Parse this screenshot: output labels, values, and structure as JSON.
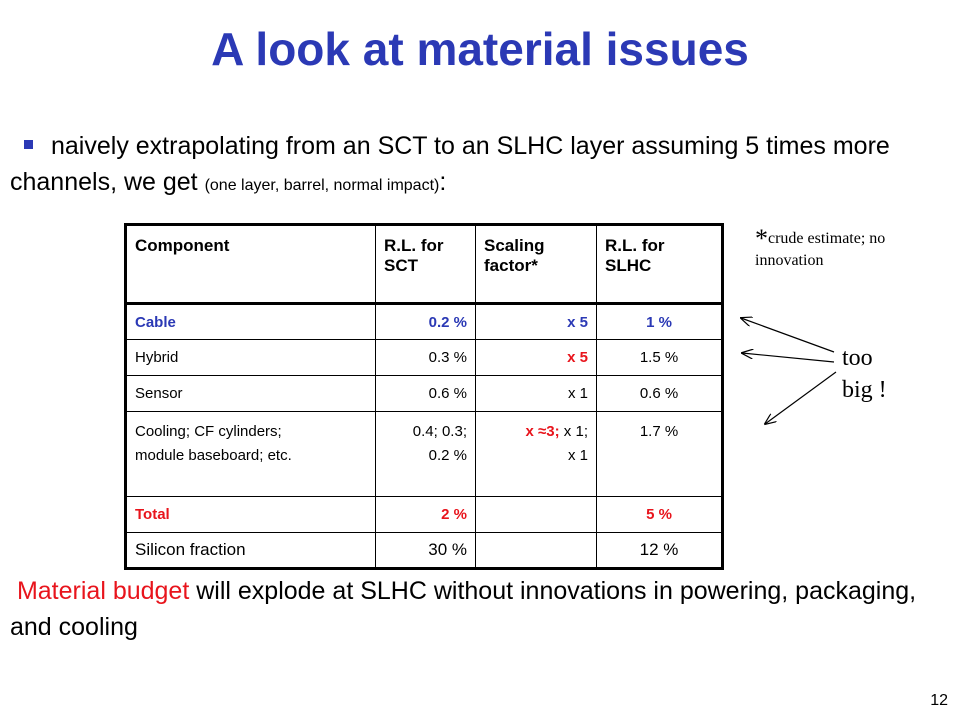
{
  "slide": {
    "title": "A look at material issues",
    "bullet_main": "naively extrapolating from an SCT to an SLHC layer assuming 5 times more channels, we get ",
    "bullet_paren": "(one layer, barrel, normal impact)",
    "bullet_colon": ":",
    "note_star": "*",
    "note_text": "crude estimate; no innovation",
    "callout_line1": "too",
    "callout_line2": "big !",
    "conclusion_highlight": "Material budget",
    "conclusion_rest": " will explode at SLHC without innovations in powering, packaging, and cooling",
    "page_number": "12"
  },
  "table": {
    "headers": [
      "Component",
      "R.L. for SCT",
      "Scaling factor*",
      "R.L. for SLHC"
    ],
    "rows": [
      {
        "component": "Cable",
        "rl_sct": "0.2 %",
        "scaling": "x 5",
        "rl_slhc": "1 %"
      },
      {
        "component": "Hybrid",
        "rl_sct": "0.3 %",
        "scaling": "x 5",
        "rl_slhc": "1.5 %"
      },
      {
        "component": "Sensor",
        "rl_sct": "0.6 %",
        "scaling": "x 1",
        "rl_slhc": "0.6 %"
      },
      {
        "component_line1": "Cooling; CF cylinders;",
        "component_line2": "module baseboard; etc.",
        "rl_sct_line1": "0.4; 0.3;",
        "rl_sct_line2": "0.2 %",
        "scaling_red": "x ≈3;",
        "scaling_rest": " x 1;",
        "scaling_line2": "x 1",
        "rl_slhc": "1.7 %"
      },
      {
        "component": "Total",
        "rl_sct": "2 %",
        "scaling": "",
        "rl_slhc": "5 %"
      },
      {
        "component": "Silicon fraction",
        "rl_sct": "30 %",
        "scaling": "",
        "rl_slhc": "12 %"
      }
    ]
  },
  "colors": {
    "title_blue": "#2b39b5",
    "highlight_red": "#e8141c"
  }
}
